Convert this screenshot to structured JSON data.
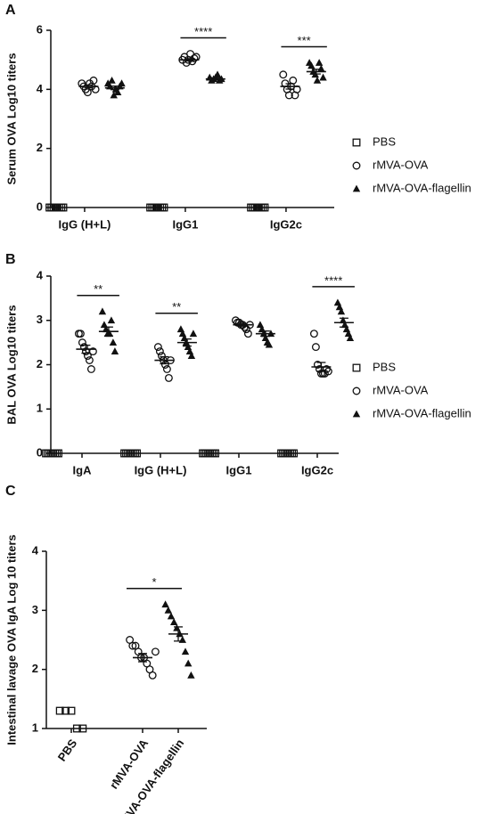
{
  "chart_data": [
    {
      "type": "dot",
      "panel": "A",
      "y_label": "Serum OVA Log10 titers",
      "categories": [
        "IgG (H+L)",
        "IgG1",
        "IgG2c"
      ],
      "ylim": [
        0,
        6
      ],
      "yticks": [
        0,
        2,
        4,
        6
      ],
      "legend": "right",
      "series": [
        {
          "name": "PBS",
          "marker": "square",
          "color": "#111111",
          "values": [
            [
              0,
              0,
              0,
              0,
              0,
              0,
              0,
              0
            ],
            [
              0,
              0,
              0,
              0,
              0,
              0,
              0,
              0
            ],
            [
              0,
              0,
              0,
              0,
              0,
              0,
              0,
              0
            ]
          ]
        },
        {
          "name": "rMVA-OVA",
          "marker": "circle",
          "color": "#111111",
          "values": [
            [
              4.2,
              4.1,
              4.0,
              3.9,
              4.2,
              4.1,
              4.3,
              4.0
            ],
            [
              5.0,
              5.1,
              4.9,
              5.0,
              5.2,
              4.95,
              5.05,
              5.1
            ],
            [
              4.5,
              4.2,
              4.0,
              3.8,
              4.1,
              4.3,
              3.8,
              4.0
            ]
          ],
          "means": [
            4.1,
            5.0,
            4.1
          ],
          "sems": [
            0.05,
            0.04,
            0.09
          ]
        },
        {
          "name": "rMVA-OVA-flagellin",
          "marker": "triangle",
          "color": "#111111",
          "values": [
            [
              4.2,
              4.1,
              4.3,
              3.8,
              4.0,
              3.9,
              4.1,
              4.2
            ],
            [
              4.4,
              4.3,
              4.35,
              4.4,
              4.5,
              4.3,
              4.35
            ],
            [
              4.9,
              4.8,
              4.6,
              4.5,
              4.3,
              4.9,
              4.7,
              4.4
            ]
          ],
          "means": [
            4.05,
            4.35,
            4.6
          ],
          "sems": [
            0.06,
            0.03,
            0.08
          ]
        }
      ],
      "significance": [
        {
          "label": "****",
          "category": 1
        },
        {
          "label": "***",
          "category": 2
        }
      ]
    },
    {
      "type": "dot",
      "panel": "B",
      "y_label": "BAL OVA Log10 titers",
      "categories": [
        "IgA",
        "IgG (H+L)",
        "IgG1",
        "IgG2c"
      ],
      "ylim": [
        0,
        4
      ],
      "yticks": [
        0,
        1,
        2,
        3,
        4
      ],
      "legend": "right",
      "series": [
        {
          "name": "PBS",
          "marker": "square",
          "color": "#111111",
          "values": [
            [
              0,
              0,
              0,
              0,
              0,
              0,
              0,
              0
            ],
            [
              0,
              0,
              0,
              0,
              0,
              0,
              0,
              0
            ],
            [
              0,
              0,
              0,
              0,
              0,
              0,
              0,
              0
            ],
            [
              0,
              0,
              0,
              0,
              0,
              0,
              0,
              0
            ]
          ]
        },
        {
          "name": "rMVA-OVA",
          "marker": "circle",
          "color": "#111111",
          "values": [
            [
              2.7,
              2.7,
              2.5,
              2.4,
              2.3,
              2.2,
              2.1,
              1.9,
              2.3
            ],
            [
              2.4,
              2.3,
              2.2,
              2.1,
              2.0,
              1.9,
              1.7,
              2.1
            ],
            [
              3.0,
              2.95,
              2.95,
              2.9,
              2.9,
              2.85,
              2.8,
              2.7,
              2.9
            ],
            [
              2.7,
              2.4,
              2.0,
              1.9,
              1.8,
              1.8,
              1.8,
              1.9,
              1.85
            ]
          ],
          "means": [
            2.35,
            2.1,
            2.9,
            1.95
          ],
          "sems": [
            0.09,
            0.08,
            0.03,
            0.1
          ]
        },
        {
          "name": "rMVA-OVA-flagellin",
          "marker": "triangle",
          "color": "#111111",
          "values": [
            [
              3.2,
              2.9,
              2.8,
              2.7,
              2.7,
              3.0,
              2.5,
              2.3
            ],
            [
              2.8,
              2.7,
              2.6,
              2.5,
              2.4,
              2.3,
              2.2,
              2.7
            ],
            [
              2.9,
              2.8,
              2.7,
              2.6,
              2.5,
              2.45,
              2.7
            ],
            [
              3.4,
              3.3,
              3.2,
              3.0,
              2.9,
              2.8,
              2.7,
              2.6
            ]
          ],
          "means": [
            2.75,
            2.5,
            2.7,
            2.95
          ],
          "sems": [
            0.1,
            0.08,
            0.06,
            0.1
          ]
        }
      ],
      "significance": [
        {
          "label": "**",
          "category": 0
        },
        {
          "label": "**",
          "category": 1
        },
        {
          "label": "****",
          "category": 3
        }
      ]
    },
    {
      "type": "dot",
      "panel": "C",
      "y_label": "Intestinal  lavage OVA IgA Log 10 titers",
      "categories": [
        "PBS",
        "rMVA-OVA",
        "rMVA-OVA-flagellin"
      ],
      "ylim": [
        1,
        4
      ],
      "yticks": [
        1,
        2,
        3,
        4
      ],
      "markers": [
        "square",
        "circle",
        "triangle"
      ],
      "values": [
        [
          1.3,
          1.3,
          1.3,
          1.0,
          1.0
        ],
        [
          2.5,
          2.4,
          2.4,
          2.3,
          2.2,
          2.2,
          2.1,
          2.0,
          1.9,
          2.3
        ],
        [
          3.1,
          3.0,
          2.9,
          2.8,
          2.7,
          2.6,
          2.5,
          2.3,
          2.1,
          1.9
        ]
      ],
      "means": [
        null,
        2.2,
        2.6
      ],
      "sems": [
        null,
        0.07,
        0.12
      ],
      "significance": [
        {
          "label": "*",
          "categories": [
            1,
            2
          ]
        }
      ]
    }
  ]
}
